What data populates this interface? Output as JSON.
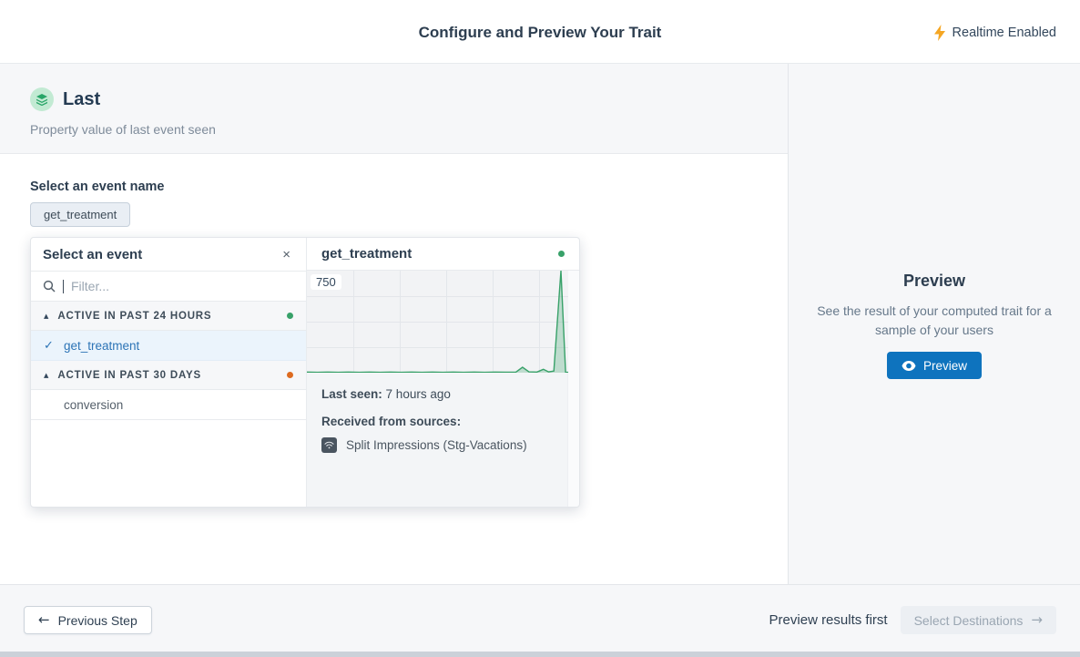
{
  "header": {
    "title": "Configure and Preview Your Trait",
    "realtime_label": "Realtime Enabled"
  },
  "trait": {
    "name": "Last",
    "description": "Property value of last event seen"
  },
  "event_select": {
    "label": "Select an event name",
    "selected_chip": "get_treatment",
    "popover": {
      "title": "Select an event",
      "close_icon": "×",
      "filter_placeholder": "Filter...",
      "groups": [
        {
          "label": "ACTIVE IN PAST 24 HOURS",
          "dot_color": "#38a169",
          "items": [
            {
              "name": "get_treatment",
              "selected": true
            }
          ]
        },
        {
          "label": "ACTIVE IN PAST 30 DAYS",
          "dot_color": "#dd6b20",
          "items": [
            {
              "name": "conversion",
              "selected": false
            }
          ]
        }
      ],
      "detail": {
        "event_name": "get_treatment",
        "status_dot_color": "#38a169",
        "last_seen_label": "Last seen:",
        "last_seen_value": "7 hours ago",
        "sources_label": "Received from sources:",
        "sources": [
          "Split Impressions (Stg-Vacations)"
        ]
      }
    }
  },
  "chart_data": {
    "type": "area",
    "title": "get_treatment event volume over time",
    "ylabel": "",
    "xlabel": "",
    "ylim": [
      0,
      750
    ],
    "ytick_label": "750",
    "grid": true,
    "line_color": "#38a169",
    "fill_color": "rgba(56,161,105,0.28)",
    "points": [
      [
        0,
        5
      ],
      [
        0.04,
        3
      ],
      [
        0.08,
        5
      ],
      [
        0.12,
        3
      ],
      [
        0.16,
        5
      ],
      [
        0.2,
        3
      ],
      [
        0.24,
        5
      ],
      [
        0.28,
        3
      ],
      [
        0.32,
        5
      ],
      [
        0.36,
        3
      ],
      [
        0.4,
        5
      ],
      [
        0.44,
        3
      ],
      [
        0.48,
        5
      ],
      [
        0.52,
        3
      ],
      [
        0.56,
        5
      ],
      [
        0.6,
        3
      ],
      [
        0.64,
        5
      ],
      [
        0.68,
        3
      ],
      [
        0.72,
        5
      ],
      [
        0.76,
        4
      ],
      [
        0.8,
        5
      ],
      [
        0.825,
        40
      ],
      [
        0.85,
        6
      ],
      [
        0.88,
        5
      ],
      [
        0.905,
        25
      ],
      [
        0.925,
        6
      ],
      [
        0.945,
        12
      ],
      [
        0.972,
        750
      ],
      [
        0.99,
        3
      ],
      [
        1,
        3
      ]
    ]
  },
  "preview_panel": {
    "title": "Preview",
    "description": "See the result of your computed trait for a sample of your users",
    "button_label": "Preview"
  },
  "footer": {
    "previous_label": "Previous Step",
    "hint": "Preview results first",
    "next_label": "Select Destinations"
  },
  "colors": {
    "accent_blue": "#0e73be",
    "link_blue": "#2d74b6",
    "green": "#38a169",
    "orange": "#dd6b20",
    "lightning_yellow": "#f5a623",
    "trait_icon_bg": "#c2ead3",
    "trait_icon_glyph": "#27a567"
  }
}
